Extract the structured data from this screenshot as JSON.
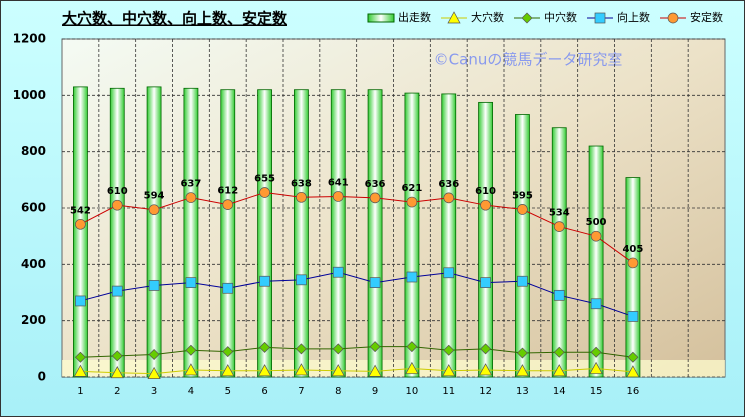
{
  "chart_data": {
    "type": "combo",
    "title": "大穴数、中穴数、向上数、安定数",
    "annotation": "©Canuの競馬データ研究室",
    "categories": [
      "1",
      "2",
      "3",
      "4",
      "5",
      "6",
      "7",
      "8",
      "9",
      "10",
      "11",
      "12",
      "13",
      "14",
      "15",
      "16",
      null,
      null
    ],
    "ylim": [
      0,
      1200
    ],
    "yticks": [
      0,
      200,
      400,
      600,
      800,
      1000,
      1200
    ],
    "grid": true,
    "legend": "top-right",
    "series": [
      {
        "name": "出走数",
        "type": "bar",
        "color": "#33cc33",
        "values": [
          1030,
          1025,
          1030,
          1025,
          1020,
          1020,
          1020,
          1020,
          1020,
          1008,
          1005,
          975,
          932,
          885,
          820,
          708,
          null,
          null
        ]
      },
      {
        "name": "大穴数",
        "type": "line",
        "marker": "triangle",
        "color": "#ffff00",
        "line_color": "#cccc00",
        "values": [
          20,
          15,
          12,
          25,
          22,
          22,
          25,
          22,
          20,
          30,
          22,
          25,
          22,
          22,
          30,
          18,
          null,
          null
        ]
      },
      {
        "name": "中穴数",
        "type": "line",
        "marker": "diamond",
        "color": "#66cc00",
        "line_color": "#336600",
        "values": [
          70,
          75,
          80,
          95,
          90,
          105,
          100,
          100,
          108,
          108,
          95,
          100,
          85,
          88,
          88,
          70,
          null,
          null
        ]
      },
      {
        "name": "向上数",
        "type": "line",
        "marker": "square",
        "color": "#33ccff",
        "line_color": "#000099",
        "values": [
          270,
          305,
          325,
          335,
          315,
          340,
          345,
          372,
          335,
          355,
          370,
          335,
          340,
          290,
          260,
          215,
          null,
          null
        ]
      },
      {
        "name": "安定数",
        "type": "line",
        "marker": "circle",
        "color": "#ff9933",
        "line_color": "#cc0000",
        "labels": true,
        "values": [
          542,
          610,
          594,
          637,
          612,
          655,
          638,
          641,
          636,
          621,
          636,
          610,
          595,
          534,
          500,
          405,
          null,
          null
        ]
      }
    ]
  }
}
